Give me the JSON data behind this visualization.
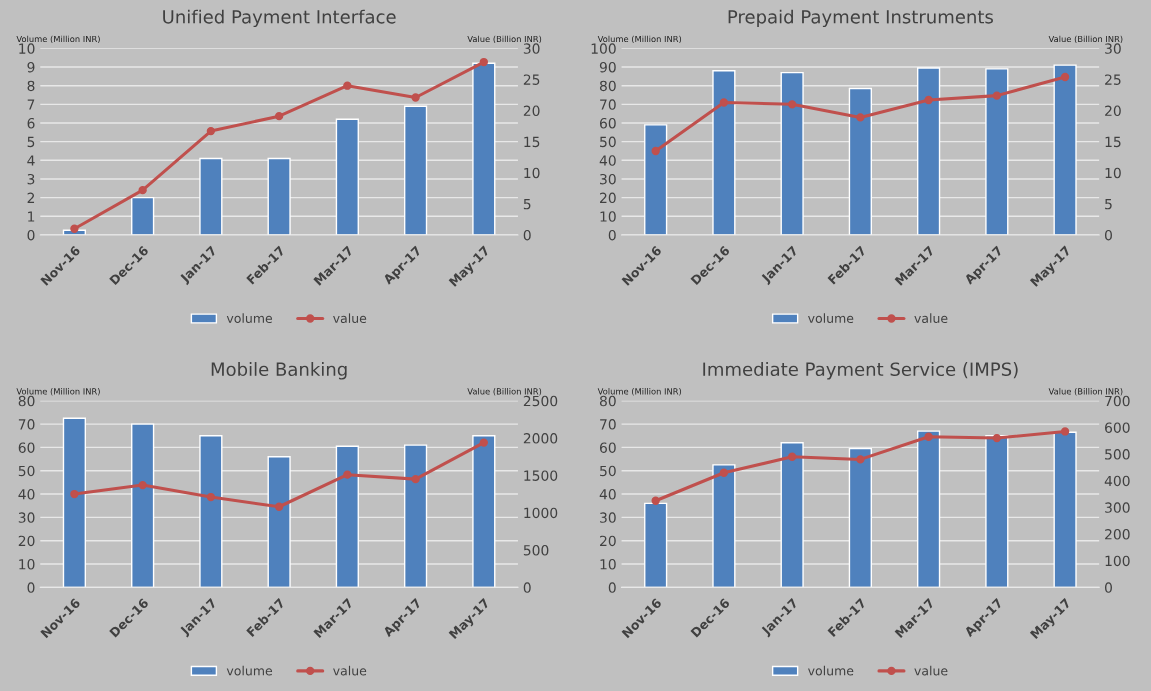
{
  "chart_data": [
    {
      "type": "bar",
      "title": "Unified Payment Interface",
      "ylabel": "Volume (Million INR)",
      "y2label": "Value (Billion INR)",
      "categories": [
        "Nov-16",
        "Dec-16",
        "Jan-17",
        "Feb-17",
        "Mar-17",
        "Apr-17",
        "May-17"
      ],
      "series": [
        {
          "name": "volume",
          "color": "#4f81bd",
          "values": [
            0.25,
            2.0,
            4.1,
            4.1,
            6.2,
            6.9,
            9.2
          ]
        },
        {
          "name": "value",
          "type": "line",
          "axis": "y2",
          "color": "#c0504d",
          "values": [
            1.0,
            7.2,
            16.7,
            19.1,
            24.0,
            22.1,
            27.8
          ]
        }
      ],
      "ylim": [
        0,
        10
      ],
      "yticks": [
        0,
        1,
        2,
        3,
        4,
        5,
        6,
        7,
        8,
        9,
        10
      ],
      "y2lim": [
        0,
        30
      ],
      "y2ticks": [
        0,
        5,
        10,
        15,
        20,
        25,
        30
      ],
      "grid": "y",
      "legend": "bottom",
      "marker": "circle"
    },
    {
      "type": "bar",
      "title": "Prepaid Payment Instruments",
      "ylabel": "Volume (Million INR)",
      "y2label": "Value (Billion INR)",
      "categories": [
        "Nov-16",
        "Dec-16",
        "Jan-17",
        "Feb-17",
        "Mar-17",
        "Apr-17",
        "May-17"
      ],
      "series": [
        {
          "name": "volume",
          "color": "#4f81bd",
          "values": [
            59,
            88,
            87,
            78.5,
            89.5,
            89,
            91
          ]
        },
        {
          "name": "value",
          "type": "line",
          "axis": "y2",
          "color": "#c0504d",
          "values": [
            13.5,
            21.3,
            21.0,
            18.9,
            21.7,
            22.4,
            25.4
          ]
        }
      ],
      "ylim": [
        0,
        100
      ],
      "yticks": [
        0,
        10,
        20,
        30,
        40,
        50,
        60,
        70,
        80,
        90,
        100
      ],
      "y2lim": [
        0,
        30
      ],
      "y2ticks": [
        0,
        5,
        10,
        15,
        20,
        25,
        30
      ],
      "grid": "y",
      "legend": "bottom",
      "marker": "circle"
    },
    {
      "type": "bar",
      "title": "Mobile Banking",
      "ylabel": "Volume (Million INR)",
      "y2label": "Value (Billion INR)",
      "categories": [
        "Nov-16",
        "Dec-16",
        "Jan-17",
        "Feb-17",
        "Mar-17",
        "Apr-17",
        "May-17"
      ],
      "series": [
        {
          "name": "volume",
          "color": "#4f81bd",
          "values": [
            72.5,
            70,
            65,
            56,
            60.5,
            61,
            65
          ]
        },
        {
          "name": "value",
          "type": "line",
          "axis": "y2",
          "color": "#c0504d",
          "values": [
            1250,
            1370,
            1210,
            1080,
            1510,
            1450,
            1940
          ]
        }
      ],
      "ylim": [
        0,
        80
      ],
      "yticks": [
        0,
        10,
        20,
        30,
        40,
        50,
        60,
        70,
        80
      ],
      "y2lim": [
        0,
        2500
      ],
      "y2ticks": [
        0,
        500,
        1000,
        1500,
        2000,
        2500
      ],
      "grid": "y",
      "legend": "bottom",
      "marker": "circle"
    },
    {
      "type": "bar",
      "title": "Immediate Payment Service (IMPS)",
      "ylabel": "Volume (Million INR)",
      "y2label": "Value (Billion INR)",
      "categories": [
        "Nov-16",
        "Dec-16",
        "Jan-17",
        "Feb-17",
        "Mar-17",
        "Apr-17",
        "May-17"
      ],
      "series": [
        {
          "name": "volume",
          "color": "#4f81bd",
          "values": [
            36,
            52.5,
            62,
            59.5,
            67,
            65,
            66.5
          ]
        },
        {
          "name": "value",
          "type": "line",
          "axis": "y2",
          "color": "#c0504d",
          "values": [
            325,
            430,
            490,
            480,
            565,
            560,
            585
          ]
        }
      ],
      "ylim": [
        0,
        80
      ],
      "yticks": [
        0,
        10,
        20,
        30,
        40,
        50,
        60,
        70,
        80
      ],
      "y2lim": [
        0,
        700
      ],
      "y2ticks": [
        0,
        100,
        200,
        300,
        400,
        500,
        600,
        700
      ],
      "grid": "y",
      "legend": "bottom",
      "marker": "circle"
    }
  ]
}
